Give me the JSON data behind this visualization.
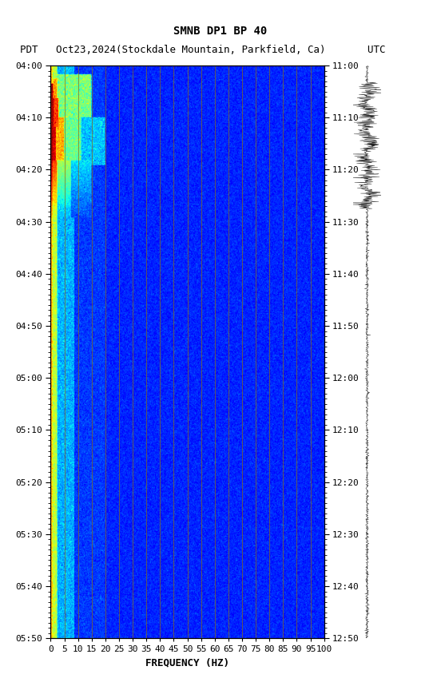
{
  "title": "SMNB DP1 BP 40",
  "subtitle_left": "PDT   Oct23,2024(Stockdale Mountain, Parkfield, Ca)       UTC",
  "xlabel": "FREQUENCY (HZ)",
  "freq_min": 0,
  "freq_max": 100,
  "time_ticks_left": [
    "04:00",
    "04:10",
    "04:20",
    "04:30",
    "04:40",
    "04:50",
    "05:00",
    "05:10",
    "05:20",
    "05:30",
    "05:40",
    "05:50"
  ],
  "time_ticks_right": [
    "11:00",
    "11:10",
    "11:20",
    "11:30",
    "11:40",
    "11:50",
    "12:00",
    "12:10",
    "12:20",
    "12:30",
    "12:40",
    "12:50"
  ],
  "freq_ticks": [
    0,
    5,
    10,
    15,
    20,
    25,
    30,
    35,
    40,
    45,
    50,
    55,
    60,
    65,
    70,
    75,
    80,
    85,
    90,
    95,
    100
  ],
  "vertical_lines_freq": [
    5,
    10,
    15,
    20,
    25,
    30,
    35,
    40,
    45,
    50,
    55,
    60,
    65,
    70,
    75,
    80,
    85,
    90,
    95,
    100
  ],
  "fig_width": 5.52,
  "fig_height": 8.64,
  "title_fontsize": 10,
  "subtitle_fontsize": 9,
  "tick_fontsize": 8,
  "axis_label_fontsize": 9,
  "vline_color": "#8B6914",
  "vline_alpha": 0.8
}
